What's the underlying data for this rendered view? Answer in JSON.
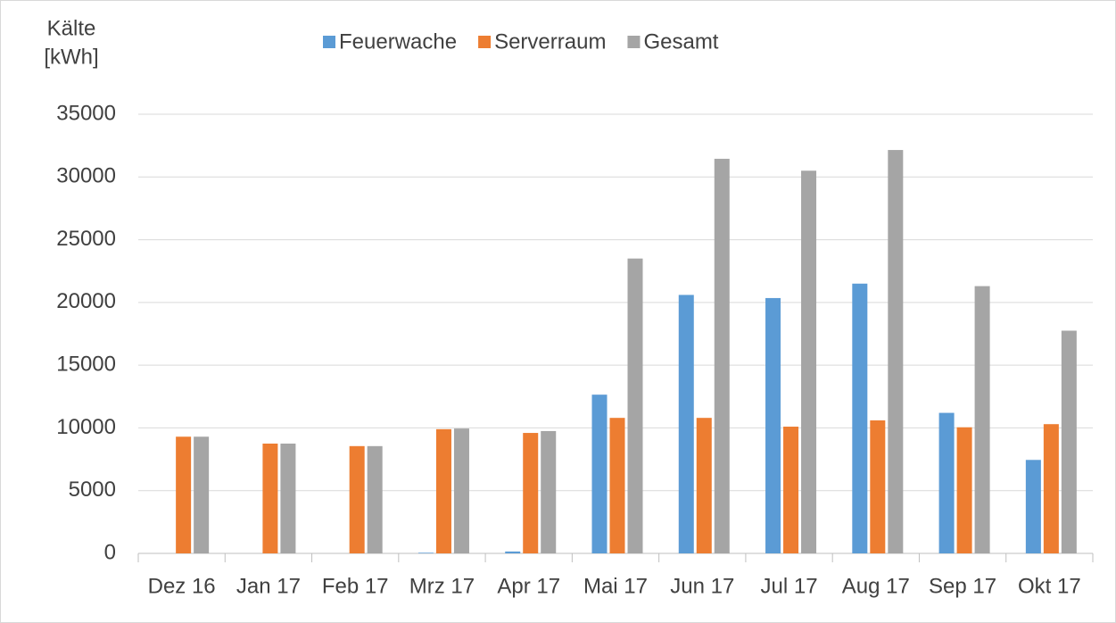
{
  "chart_data": {
    "type": "bar",
    "ylabel": [
      "Kälte",
      "[kWh]"
    ],
    "categories": [
      "Dez 16",
      "Jan 17",
      "Feb 17",
      "Mrz 17",
      "Apr 17",
      "Mai 17",
      "Jun 17",
      "Jul 17",
      "Aug 17",
      "Sep 17",
      "Okt 17"
    ],
    "series": [
      {
        "name": "Feuerwache",
        "color": "#5b9bd5",
        "values": [
          0,
          0,
          0,
          50,
          150,
          12650,
          20600,
          20350,
          21500,
          11200,
          7450
        ]
      },
      {
        "name": "Serverraum",
        "color": "#ed7d31",
        "values": [
          9300,
          8750,
          8550,
          9900,
          9600,
          10800,
          10800,
          10100,
          10600,
          10050,
          10300
        ]
      },
      {
        "name": "Gesamt",
        "color": "#a5a5a5",
        "values": [
          9300,
          8750,
          8550,
          9950,
          9750,
          23500,
          31450,
          30500,
          32150,
          21300,
          17750
        ]
      }
    ],
    "ylim": [
      0,
      35000
    ],
    "yticks": [
      0,
      5000,
      10000,
      15000,
      20000,
      25000,
      30000,
      35000
    ],
    "grid": true,
    "legend": "top"
  }
}
